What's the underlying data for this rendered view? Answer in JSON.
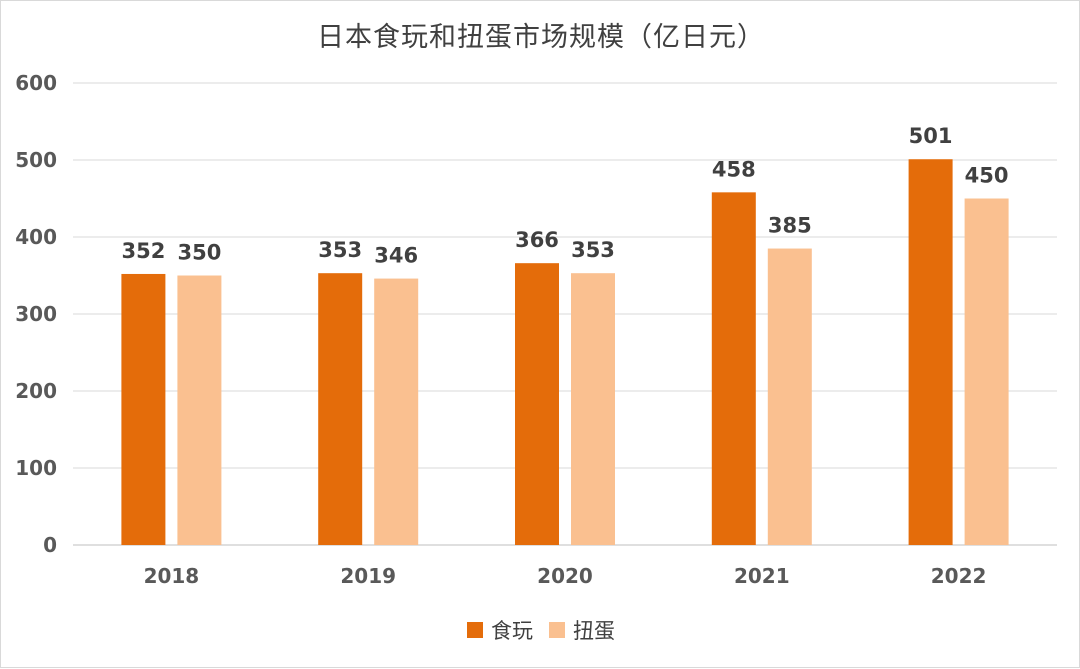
{
  "chart_data": {
    "type": "bar",
    "title": "日本食玩和扭蛋市场规模（亿日元）",
    "categories": [
      "2018",
      "2019",
      "2020",
      "2021",
      "2022"
    ],
    "series": [
      {
        "name": "食玩",
        "values": [
          352,
          353,
          366,
          458,
          501
        ],
        "color": "#E46C0A"
      },
      {
        "name": "扭蛋",
        "values": [
          350,
          346,
          353,
          385,
          450
        ],
        "color": "#FAC090"
      }
    ],
    "ylim": [
      0,
      600
    ],
    "yticks": [
      0,
      100,
      200,
      300,
      400,
      500,
      600
    ],
    "grid": true,
    "legend_position": "bottom",
    "data_labels": true
  }
}
